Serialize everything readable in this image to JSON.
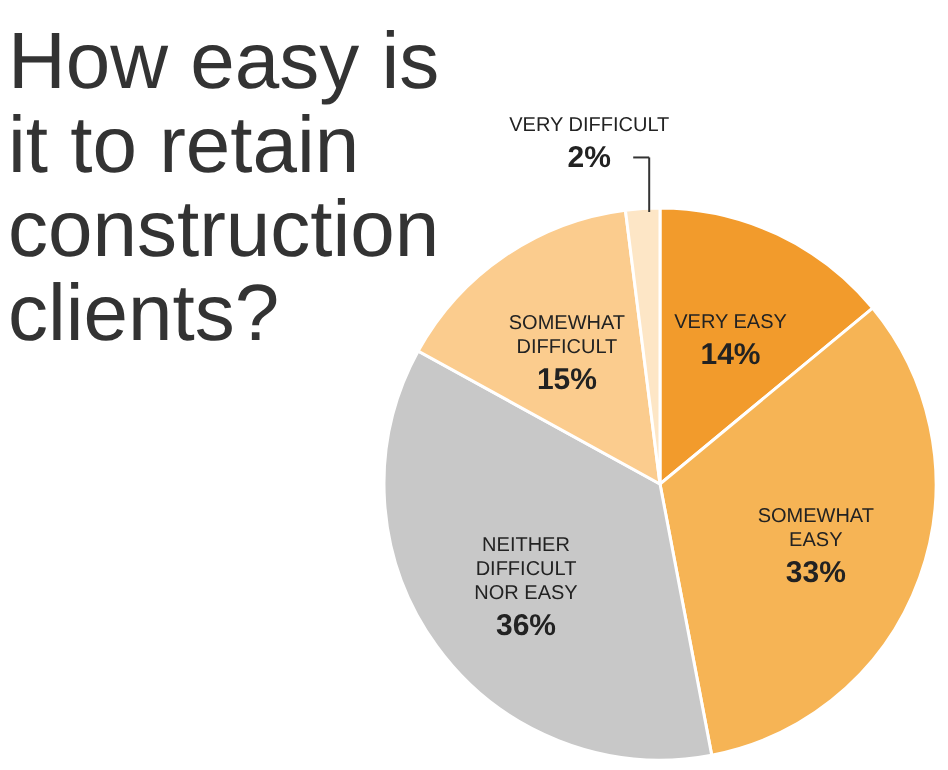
{
  "chart_data": {
    "type": "pie",
    "title": "How easy is it to retain construction clients?",
    "categories": [
      "VERY EASY",
      "SOMEWHAT EASY",
      "NEITHER DIFFICULT NOR EASY",
      "SOMEWHAT DIFFICULT",
      "VERY DIFFICULT"
    ],
    "values": [
      14,
      33,
      36,
      15,
      2
    ],
    "colors": [
      "#f29b2c",
      "#f6b455",
      "#c8c8c8",
      "#fbcc8e",
      "#fde6c6"
    ],
    "value_labels": [
      "14%",
      "33%",
      "36%",
      "15%",
      "2%"
    ]
  }
}
